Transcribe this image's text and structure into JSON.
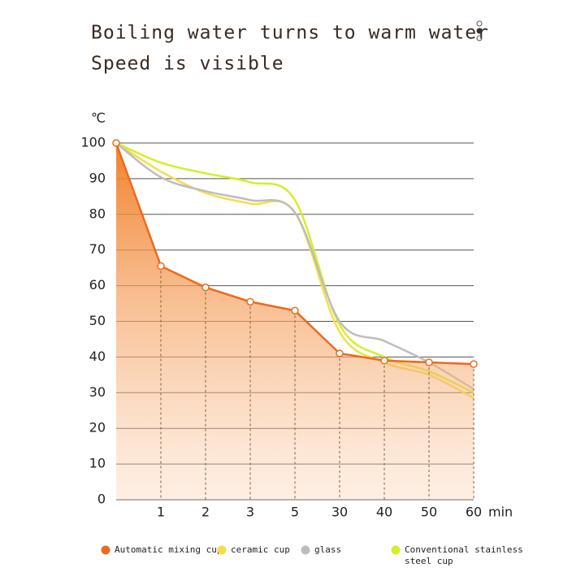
{
  "chart_data": {
    "type": "line",
    "title": "Boiling water turns to warm water",
    "subtitle": "Speed is visible",
    "y_label": "℃",
    "x_label": "min",
    "categories": [
      null,
      "1",
      "2",
      "3",
      "5",
      "30",
      "40",
      "50",
      "60"
    ],
    "ylim": [
      0,
      100
    ],
    "yticks": [
      0,
      10,
      20,
      30,
      40,
      50,
      60,
      70,
      80,
      90,
      100
    ],
    "grid": true,
    "series": [
      {
        "name": "Automatic mixing cup",
        "color": "#ec6a1c",
        "values": [
          100,
          65.5,
          59.5,
          55.5,
          53,
          41,
          39,
          38.5,
          38
        ]
      },
      {
        "name": "ceramic cup",
        "color": "#f3df4a",
        "values": [
          100,
          92,
          86,
          83,
          80.5,
          47,
          38.5,
          35,
          28.5
        ]
      },
      {
        "name": "glass",
        "color": "#bdbdbd",
        "values": [
          100,
          90.4,
          86.5,
          84,
          80.5,
          50,
          44.5,
          38.5,
          31
        ]
      },
      {
        "name": "Conventional stainless steel cup",
        "color": "#d6ee2a",
        "values": [
          100,
          94.5,
          91.5,
          89,
          84,
          49,
          40,
          36,
          30
        ]
      }
    ]
  }
}
